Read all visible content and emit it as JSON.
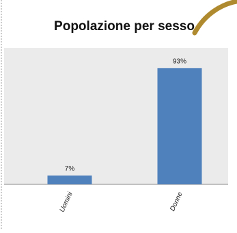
{
  "chart_data": {
    "type": "bar",
    "title": "Popolazione per sesso",
    "categories": [
      "Uomini",
      "Donne"
    ],
    "values": [
      7,
      93
    ],
    "data_labels": [
      "7%",
      "93%"
    ],
    "ylim": [
      0,
      100
    ],
    "legend": "none",
    "grid": false,
    "bar_color": "#4f81bd",
    "plot_background": "#ebebeb",
    "accent_arc_color": "#b08a2e"
  }
}
